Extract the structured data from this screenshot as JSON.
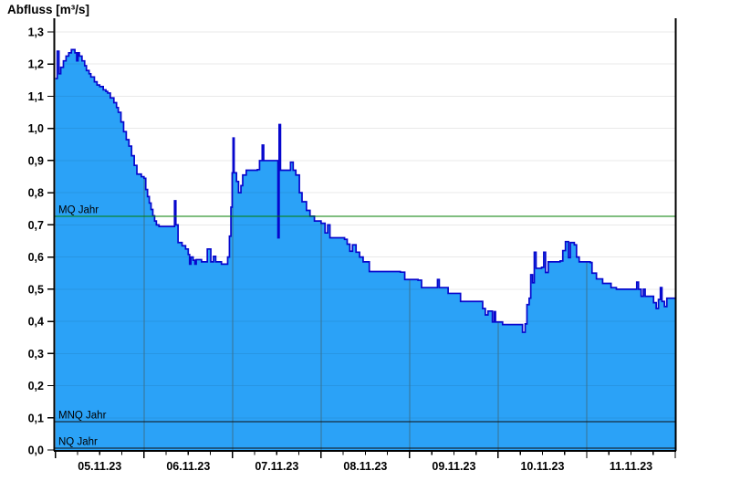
{
  "chart_data": {
    "type": "area",
    "title": "Abfluss [m³/s]",
    "x_days": 7,
    "x_tick_labels": [
      "05.11.23",
      "06.11.23",
      "07.11.23",
      "08.11.23",
      "09.11.23",
      "10.11.23",
      "11.11.23"
    ],
    "x_minor_divisions_per_day": 4,
    "ylim": [
      0,
      1.3
    ],
    "y_tick_step": 0.1,
    "y_tick_labels": [
      "0,0",
      "0,1",
      "0,2",
      "0,3",
      "0,4",
      "0,5",
      "0,6",
      "0,7",
      "0,8",
      "0,9",
      "1,0",
      "1,1",
      "1,2",
      "1,3"
    ],
    "grid": {
      "horizontal": true,
      "vertical_day_lines": true
    },
    "legend": "none",
    "reference_lines": [
      {
        "id": "mq",
        "label": "MQ Jahr",
        "value": 0.727,
        "color": "#007d00"
      },
      {
        "id": "mnq",
        "label": "MNQ Jahr",
        "value": 0.088,
        "color": "#101010"
      },
      {
        "id": "nq",
        "label": "NQ Jahr",
        "value": 0.006,
        "color": "#101010"
      }
    ],
    "series": [
      {
        "name": "Abfluss",
        "unit": "m³/s",
        "line_color": "#0707cd",
        "fill_color": "#2ba2f7",
        "step": "after",
        "points_t_days_value": [
          [
            0,
            1.155
          ],
          [
            0.02,
            1.24
          ],
          [
            0.04,
            1.17
          ],
          [
            0.06,
            1.19
          ],
          [
            0.09,
            1.21
          ],
          [
            0.12,
            1.225
          ],
          [
            0.15,
            1.235
          ],
          [
            0.18,
            1.245
          ],
          [
            0.22,
            1.235
          ],
          [
            0.24,
            1.21
          ],
          [
            0.255,
            1.235
          ],
          [
            0.27,
            1.225
          ],
          [
            0.3,
            1.21
          ],
          [
            0.33,
            1.195
          ],
          [
            0.35,
            1.18
          ],
          [
            0.38,
            1.17
          ],
          [
            0.4,
            1.16
          ],
          [
            0.44,
            1.145
          ],
          [
            0.47,
            1.135
          ],
          [
            0.5,
            1.13
          ],
          [
            0.54,
            1.12
          ],
          [
            0.57,
            1.115
          ],
          [
            0.59,
            1.11
          ],
          [
            0.62,
            1.095
          ],
          [
            0.66,
            1.08
          ],
          [
            0.69,
            1.065
          ],
          [
            0.71,
            1.05
          ],
          [
            0.74,
            1.02
          ],
          [
            0.77,
            0.99
          ],
          [
            0.8,
            0.965
          ],
          [
            0.83,
            0.945
          ],
          [
            0.86,
            0.915
          ],
          [
            0.89,
            0.885
          ],
          [
            0.92,
            0.858
          ],
          [
            0.97,
            0.85
          ],
          [
            1.0,
            0.845
          ],
          [
            1.02,
            0.81
          ],
          [
            1.04,
            0.788
          ],
          [
            1.06,
            0.768
          ],
          [
            1.08,
            0.748
          ],
          [
            1.1,
            0.728
          ],
          [
            1.12,
            0.712
          ],
          [
            1.14,
            0.7
          ],
          [
            1.17,
            0.695
          ],
          [
            1.33,
            0.695
          ],
          [
            1.345,
            0.775
          ],
          [
            1.36,
            0.7
          ],
          [
            1.385,
            0.645
          ],
          [
            1.43,
            0.635
          ],
          [
            1.47,
            0.625
          ],
          [
            1.5,
            0.608
          ],
          [
            1.515,
            0.578
          ],
          [
            1.53,
            0.6
          ],
          [
            1.555,
            0.59
          ],
          [
            1.575,
            0.578
          ],
          [
            1.59,
            0.592
          ],
          [
            1.65,
            0.585
          ],
          [
            1.715,
            0.625
          ],
          [
            1.755,
            0.585
          ],
          [
            1.785,
            0.602
          ],
          [
            1.81,
            0.585
          ],
          [
            1.875,
            0.578
          ],
          [
            1.945,
            0.6
          ],
          [
            1.965,
            0.665
          ],
          [
            1.982,
            0.755
          ],
          [
            1.996,
            0.862
          ],
          [
            2.006,
            0.97
          ],
          [
            2.018,
            0.862
          ],
          [
            2.045,
            0.835
          ],
          [
            2.068,
            0.8
          ],
          [
            2.095,
            0.822
          ],
          [
            2.115,
            0.855
          ],
          [
            2.155,
            0.87
          ],
          [
            2.28,
            0.872
          ],
          [
            2.305,
            0.9
          ],
          [
            2.335,
            0.948
          ],
          [
            2.352,
            0.9
          ],
          [
            2.5,
            0.9
          ],
          [
            2.513,
            0.66
          ],
          [
            2.526,
            1.012
          ],
          [
            2.542,
            0.87
          ],
          [
            2.61,
            0.87
          ],
          [
            2.655,
            0.895
          ],
          [
            2.685,
            0.87
          ],
          [
            2.715,
            0.855
          ],
          [
            2.755,
            0.8
          ],
          [
            2.785,
            0.772
          ],
          [
            2.835,
            0.745
          ],
          [
            2.875,
            0.727
          ],
          [
            2.925,
            0.712
          ],
          [
            3.0,
            0.705
          ],
          [
            3.045,
            0.675
          ],
          [
            3.075,
            0.7
          ],
          [
            3.1,
            0.66
          ],
          [
            3.265,
            0.655
          ],
          [
            3.295,
            0.64
          ],
          [
            3.325,
            0.618
          ],
          [
            3.355,
            0.638
          ],
          [
            3.395,
            0.615
          ],
          [
            3.435,
            0.6
          ],
          [
            3.475,
            0.585
          ],
          [
            3.545,
            0.555
          ],
          [
            3.895,
            0.553
          ],
          [
            3.945,
            0.53
          ],
          [
            4.095,
            0.528
          ],
          [
            4.135,
            0.505
          ],
          [
            4.295,
            0.505
          ],
          [
            4.315,
            0.53
          ],
          [
            4.335,
            0.505
          ],
          [
            4.435,
            0.487
          ],
          [
            4.575,
            0.462
          ],
          [
            4.825,
            0.44
          ],
          [
            4.855,
            0.42
          ],
          [
            4.885,
            0.432
          ],
          [
            4.935,
            0.398
          ],
          [
            4.955,
            0.43
          ],
          [
            4.97,
            0.398
          ],
          [
            5.05,
            0.39
          ],
          [
            5.255,
            0.39
          ],
          [
            5.275,
            0.366
          ],
          [
            5.305,
            0.392
          ],
          [
            5.325,
            0.452
          ],
          [
            5.35,
            0.472
          ],
          [
            5.368,
            0.545
          ],
          [
            5.388,
            0.52
          ],
          [
            5.408,
            0.615
          ],
          [
            5.428,
            0.565
          ],
          [
            5.49,
            0.568
          ],
          [
            5.515,
            0.615
          ],
          [
            5.535,
            0.552
          ],
          [
            5.565,
            0.585
          ],
          [
            5.7,
            0.588
          ],
          [
            5.73,
            0.62
          ],
          [
            5.76,
            0.648
          ],
          [
            5.795,
            0.598
          ],
          [
            5.815,
            0.645
          ],
          [
            5.86,
            0.638
          ],
          [
            5.885,
            0.6
          ],
          [
            5.915,
            0.585
          ],
          [
            6.04,
            0.583
          ],
          [
            6.06,
            0.55
          ],
          [
            6.11,
            0.532
          ],
          [
            6.18,
            0.518
          ],
          [
            6.275,
            0.505
          ],
          [
            6.335,
            0.5
          ],
          [
            6.55,
            0.5
          ],
          [
            6.565,
            0.522
          ],
          [
            6.585,
            0.5
          ],
          [
            6.615,
            0.478
          ],
          [
            6.64,
            0.5
          ],
          [
            6.66,
            0.478
          ],
          [
            6.755,
            0.458
          ],
          [
            6.785,
            0.44
          ],
          [
            6.81,
            0.468
          ],
          [
            6.832,
            0.505
          ],
          [
            6.85,
            0.462
          ],
          [
            6.878,
            0.446
          ],
          [
            6.905,
            0.472
          ],
          [
            7.0,
            0.472
          ]
        ]
      }
    ]
  },
  "colors": {
    "background": "#ffffff",
    "axis": "#000000",
    "grid_light": "#e9e9e9",
    "day_line_over_fill": "#3a7390",
    "text": "#000000"
  }
}
